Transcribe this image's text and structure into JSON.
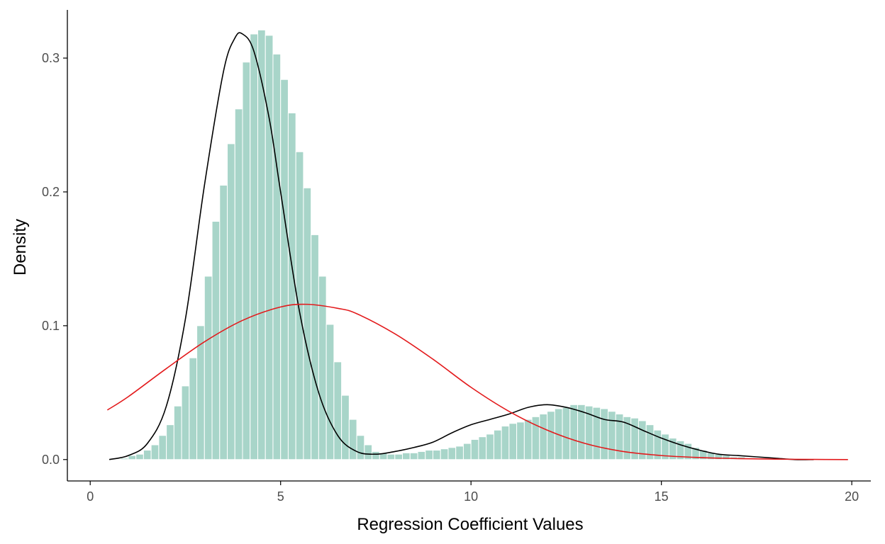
{
  "chart_data": {
    "type": "histogram",
    "title": "",
    "xlabel": "Regression Coefficient Values",
    "ylabel": "Density",
    "xlim": [
      -0.6,
      20.5
    ],
    "ylim": [
      -0.016,
      0.336
    ],
    "x_ticks": [
      0,
      5,
      10,
      15,
      20
    ],
    "x_tick_labels": [
      "0",
      "5",
      "10",
      "15",
      "20"
    ],
    "y_ticks": [
      0.0,
      0.1,
      0.2,
      0.3
    ],
    "y_tick_labels": [
      "0.0",
      "0.1",
      "0.2",
      "0.3"
    ],
    "grid": false,
    "legend": "none",
    "bin_width": 0.2,
    "histogram_start": 0.6,
    "histogram_density": [
      0.0,
      0.001,
      0.003,
      0.004,
      0.007,
      0.011,
      0.018,
      0.026,
      0.04,
      0.055,
      0.076,
      0.1,
      0.137,
      0.178,
      0.205,
      0.236,
      0.262,
      0.297,
      0.318,
      0.321,
      0.317,
      0.303,
      0.284,
      0.259,
      0.23,
      0.203,
      0.168,
      0.137,
      0.101,
      0.073,
      0.048,
      0.03,
      0.018,
      0.011,
      0.006,
      0.005,
      0.004,
      0.004,
      0.005,
      0.005,
      0.006,
      0.007,
      0.007,
      0.008,
      0.009,
      0.01,
      0.012,
      0.015,
      0.017,
      0.019,
      0.022,
      0.025,
      0.027,
      0.028,
      0.03,
      0.032,
      0.034,
      0.036,
      0.038,
      0.039,
      0.041,
      0.041,
      0.04,
      0.039,
      0.038,
      0.036,
      0.034,
      0.032,
      0.031,
      0.029,
      0.026,
      0.022,
      0.019,
      0.016,
      0.014,
      0.012,
      0.009,
      0.007,
      0.005,
      0.004,
      0.003,
      0.002,
      0.002,
      0.001,
      0.001,
      0.001,
      0.001,
      0.0,
      0.0,
      0.0,
      0.0,
      0.0,
      0.0,
      0.0,
      0.0,
      0.0,
      0.0
    ],
    "series": [
      {
        "kind": "density",
        "color": "#000000",
        "x": [
          0.5,
          1.0,
          1.5,
          2.0,
          2.5,
          3.0,
          3.5,
          3.8,
          4.0,
          4.3,
          4.7,
          5.0,
          5.5,
          6.0,
          6.5,
          7.0,
          7.5,
          8.0,
          8.5,
          9.0,
          9.5,
          10.0,
          10.5,
          11.0,
          11.5,
          12.0,
          12.5,
          13.0,
          13.5,
          14.0,
          14.5,
          15.0,
          15.5,
          16.0,
          16.5,
          17.0,
          17.5,
          18.0,
          18.5,
          19.0
        ],
        "y": [
          0.0,
          0.003,
          0.012,
          0.04,
          0.105,
          0.205,
          0.29,
          0.315,
          0.318,
          0.305,
          0.255,
          0.2,
          0.11,
          0.05,
          0.018,
          0.006,
          0.004,
          0.006,
          0.009,
          0.013,
          0.02,
          0.026,
          0.03,
          0.034,
          0.039,
          0.041,
          0.039,
          0.035,
          0.03,
          0.028,
          0.022,
          0.016,
          0.011,
          0.007,
          0.004,
          0.003,
          0.002,
          0.001,
          0.0,
          0.0
        ]
      },
      {
        "kind": "normal_fit",
        "color": "#e31a1c",
        "x": [
          0.45,
          1.0,
          2.0,
          3.0,
          4.0,
          5.0,
          5.7,
          6.5,
          7.0,
          8.0,
          9.0,
          10.0,
          11.0,
          12.0,
          13.0,
          14.0,
          15.0,
          16.0,
          17.0,
          18.0,
          19.0,
          19.9
        ],
        "y": [
          0.037,
          0.047,
          0.068,
          0.088,
          0.104,
          0.114,
          0.116,
          0.113,
          0.109,
          0.094,
          0.075,
          0.054,
          0.036,
          0.022,
          0.012,
          0.006,
          0.003,
          0.0015,
          0.0007,
          0.0003,
          0.0001,
          0.0
        ]
      }
    ],
    "colors": {
      "histogram_fill": "#a8d5c9",
      "histogram_border": "#ffffff",
      "axis": "#000000",
      "tick_label": "#4d4d4d"
    }
  }
}
